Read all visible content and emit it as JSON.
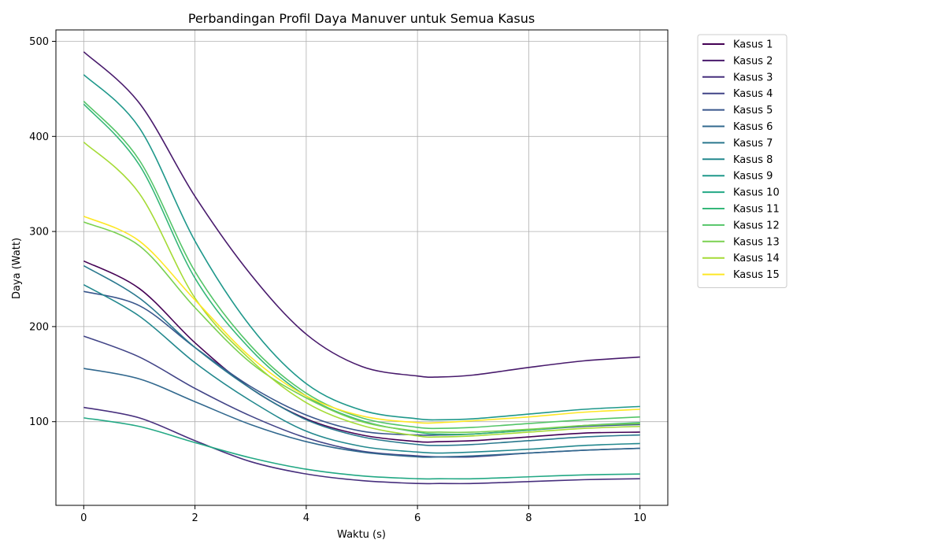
{
  "chart_data": {
    "type": "line",
    "title": "Perbandingan Profil Daya Manuver untuk Semua Kasus",
    "xlabel": "Waktu (s)",
    "ylabel": "Daya (Watt)",
    "xlim": [
      -0.5,
      10.5
    ],
    "ylim": [
      12,
      512
    ],
    "x_ticks": [
      0,
      2,
      4,
      6,
      8,
      10
    ],
    "y_ticks": [
      100,
      200,
      300,
      400,
      500
    ],
    "grid": true,
    "legend_position": "outside-right-top",
    "x": [
      0,
      1,
      2,
      3,
      4,
      5,
      6,
      6.4,
      7,
      8,
      9,
      10
    ],
    "series": [
      {
        "name": "Kasus 1",
        "color": "#440154",
        "values": [
          269,
          240,
          183,
          135,
          103,
          86,
          79,
          79,
          80,
          84,
          88,
          89
        ]
      },
      {
        "name": "Kasus 2",
        "color": "#481a6c",
        "values": [
          489,
          435,
          337,
          255,
          192,
          158,
          148,
          147,
          149,
          157,
          164,
          168
        ]
      },
      {
        "name": "Kasus 3",
        "color": "#472f7d",
        "values": [
          115,
          104,
          80,
          58,
          45,
          38,
          35,
          35,
          35,
          37,
          39,
          40
        ]
      },
      {
        "name": "Kasus 4",
        "color": "#414487",
        "values": [
          190,
          168,
          135,
          106,
          83,
          69,
          64,
          63,
          63,
          67,
          70,
          72
        ]
      },
      {
        "name": "Kasus 5",
        "color": "#39568c",
        "values": [
          237,
          222,
          178,
          137,
          107,
          90,
          86,
          86,
          87,
          91,
          95,
          97
        ]
      },
      {
        "name": "Kasus 6",
        "color": "#31688e",
        "values": [
          156,
          145,
          121,
          97,
          79,
          68,
          63,
          63,
          64,
          67,
          70,
          72
        ]
      },
      {
        "name": "Kasus 7",
        "color": "#2a788e",
        "values": [
          264,
          230,
          178,
          135,
          102,
          84,
          76,
          75,
          76,
          80,
          84,
          86
        ]
      },
      {
        "name": "Kasus 8",
        "color": "#23888e",
        "values": [
          244,
          211,
          162,
          122,
          90,
          74,
          68,
          67,
          68,
          71,
          75,
          77
        ]
      },
      {
        "name": "Kasus 9",
        "color": "#1f988b",
        "values": [
          465,
          409,
          290,
          200,
          140,
          112,
          103,
          102,
          103,
          108,
          113,
          116
        ]
      },
      {
        "name": "Kasus 10",
        "color": "#22a884",
        "values": [
          104,
          95,
          78,
          62,
          50,
          43,
          40,
          40,
          40,
          42,
          44,
          45
        ]
      },
      {
        "name": "Kasus 11",
        "color": "#35b779",
        "values": [
          434,
          370,
          251,
          176,
          127,
          101,
          89,
          87,
          87,
          91,
          96,
          99
        ]
      },
      {
        "name": "Kasus 12",
        "color": "#54c568",
        "values": [
          437,
          375,
          258,
          180,
          130,
          104,
          94,
          93,
          94,
          98,
          102,
          105
        ]
      },
      {
        "name": "Kasus 13",
        "color": "#7ad151",
        "values": [
          310,
          285,
          220,
          162,
          125,
          100,
          90,
          89,
          89,
          92,
          96,
          98
        ]
      },
      {
        "name": "Kasus 14",
        "color": "#a5db36",
        "values": [
          394,
          340,
          230,
          165,
          120,
          96,
          85,
          84,
          85,
          89,
          93,
          95
        ]
      },
      {
        "name": "Kasus 15",
        "color": "#fde725",
        "values": [
          316,
          290,
          228,
          168,
          127,
          106,
          99,
          99,
          101,
          105,
          110,
          113
        ]
      }
    ]
  }
}
